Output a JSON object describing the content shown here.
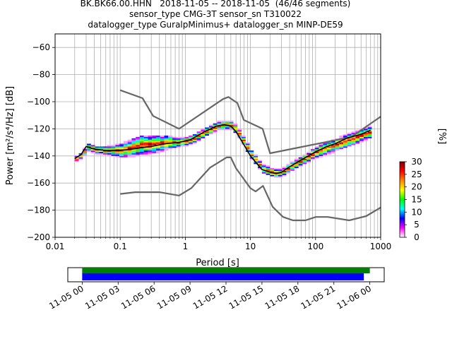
{
  "title": {
    "line1": "BK.BK66.00.HHN   2018-11-05 -- 2018-11-05  (46/46 segments)",
    "line2": "sensor_type CMG-3T sensor_sn T310022",
    "line3": "datalogger_type GuralpMinimus+ datalogger_sn MINP-DE59"
  },
  "chart_data": [
    {
      "type": "heatmap",
      "subtype": "probabilistic-power-spectral-density",
      "xlabel": "Period [s]",
      "ylabel": "Power [m²/s⁴/Hz] [dB]",
      "xscale": "log",
      "xlim": [
        0.01,
        1000
      ],
      "ylim": [
        -200,
        -50
      ],
      "xticks": [
        {
          "value": 0.01,
          "label": "0.01"
        },
        {
          "value": 0.1,
          "label": "0.1"
        },
        {
          "value": 1,
          "label": "1"
        },
        {
          "value": 10,
          "label": "10"
        },
        {
          "value": 100,
          "label": "100"
        },
        {
          "value": 1000,
          "label": "1000"
        }
      ],
      "yticks": [
        {
          "value": -60,
          "label": "−60"
        },
        {
          "value": -80,
          "label": "−80"
        },
        {
          "value": -100,
          "label": "−100"
        },
        {
          "value": -120,
          "label": "−120"
        },
        {
          "value": -140,
          "label": "−140"
        },
        {
          "value": -160,
          "label": "−160"
        },
        {
          "value": -180,
          "label": "−180"
        },
        {
          "value": -200,
          "label": "−200"
        }
      ],
      "grid": true,
      "colorbar": {
        "label": "[%]",
        "min": 0,
        "max": 30,
        "ticks": [
          0,
          5,
          10,
          15,
          20,
          25,
          30
        ],
        "colors": [
          "#ffffff",
          "#ff00ff",
          "#0000ff",
          "#00ffff",
          "#00ff00",
          "#ffff00",
          "#ff8800",
          "#ff0000",
          "#800000"
        ]
      },
      "series": [
        {
          "role": "new-high-noise-model",
          "color": "#666666",
          "x": [
            0.1,
            0.22,
            0.32,
            0.8,
            3.8,
            4.6,
            6.3,
            7.9,
            15.4,
            20,
            354.8,
            1000
          ],
          "y": [
            -91.5,
            -97.4,
            -110.5,
            -120,
            -98,
            -96.5,
            -101,
            -113.5,
            -120,
            -138,
            -126,
            -111
          ]
        },
        {
          "role": "new-low-noise-model",
          "color": "#666666",
          "x": [
            0.1,
            0.17,
            0.4,
            0.8,
            1.24,
            2.4,
            4.3,
            5,
            6,
            10,
            12,
            15.6,
            21.9,
            31.6,
            45,
            70,
            101,
            154,
            328,
            600,
            1000
          ],
          "y": [
            -168,
            -166.7,
            -166.7,
            -169.2,
            -163.7,
            -148.6,
            -141.1,
            -141.1,
            -149,
            -163.8,
            -166.2,
            -162.1,
            -177.5,
            -185,
            -187.5,
            -187.5,
            -185,
            -185,
            -187.5,
            -184.4,
            -178
          ]
        },
        {
          "role": "mode",
          "color": "#000000",
          "x": [
            0.02,
            0.025,
            0.03,
            0.04,
            0.06,
            0.1,
            0.15,
            0.2,
            0.3,
            0.5,
            0.8,
            1.2,
            2,
            3,
            4,
            5,
            6,
            8,
            10,
            15,
            20,
            25,
            30,
            40,
            60,
            100,
            150,
            200,
            300,
            500,
            700
          ],
          "y": [
            -142,
            -139,
            -133,
            -135,
            -136,
            -136,
            -135,
            -134,
            -133,
            -131,
            -130,
            -128,
            -122,
            -118,
            -117,
            -118,
            -122,
            -132,
            -140,
            -150,
            -152,
            -153,
            -152,
            -148,
            -143,
            -137,
            -133,
            -131,
            -127,
            -124,
            -121
          ]
        }
      ],
      "density_bands": [
        {
          "x": 0.02,
          "ylo": -144,
          "yhi": -140
        },
        {
          "x": 0.025,
          "ylo": -141,
          "yhi": -137
        },
        {
          "x": 0.03,
          "ylo": -136,
          "yhi": -131
        },
        {
          "x": 0.04,
          "ylo": -138,
          "yhi": -133
        },
        {
          "x": 0.06,
          "ylo": -139,
          "yhi": -133
        },
        {
          "x": 0.1,
          "ylo": -141,
          "yhi": -131
        },
        {
          "x": 0.15,
          "ylo": -140,
          "yhi": -127
        },
        {
          "x": 0.2,
          "ylo": -139,
          "yhi": -125
        },
        {
          "x": 0.3,
          "ylo": -138,
          "yhi": -125
        },
        {
          "x": 0.5,
          "ylo": -135,
          "yhi": -125
        },
        {
          "x": 0.8,
          "ylo": -133,
          "yhi": -127
        },
        {
          "x": 1.2,
          "ylo": -131,
          "yhi": -125
        },
        {
          "x": 2,
          "ylo": -125,
          "yhi": -119
        },
        {
          "x": 3,
          "ylo": -121,
          "yhi": -115
        },
        {
          "x": 4,
          "ylo": -120,
          "yhi": -114
        },
        {
          "x": 5,
          "ylo": -121,
          "yhi": -115
        },
        {
          "x": 6,
          "ylo": -125,
          "yhi": -119
        },
        {
          "x": 8,
          "ylo": -135,
          "yhi": -129
        },
        {
          "x": 10,
          "ylo": -143,
          "yhi": -137
        },
        {
          "x": 15,
          "ylo": -153,
          "yhi": -147
        },
        {
          "x": 20,
          "ylo": -155,
          "yhi": -149
        },
        {
          "x": 25,
          "ylo": -156,
          "yhi": -150
        },
        {
          "x": 30,
          "ylo": -155,
          "yhi": -149
        },
        {
          "x": 40,
          "ylo": -151,
          "yhi": -145
        },
        {
          "x": 60,
          "ylo": -146,
          "yhi": -140
        },
        {
          "x": 100,
          "ylo": -141,
          "yhi": -133
        },
        {
          "x": 150,
          "ylo": -138,
          "yhi": -129
        },
        {
          "x": 200,
          "ylo": -136,
          "yhi": -127
        },
        {
          "x": 300,
          "ylo": -133,
          "yhi": -124
        },
        {
          "x": 500,
          "ylo": -129,
          "yhi": -120
        },
        {
          "x": 700,
          "ylo": -126,
          "yhi": -118
        }
      ]
    },
    {
      "type": "bar",
      "subtype": "data-coverage-timeline",
      "xticks": [
        "11-05 00",
        "11-05 03",
        "11-05 06",
        "11-05 09",
        "11-05 12",
        "11-05 15",
        "11-05 18",
        "11-05 21",
        "11-06 00"
      ],
      "xlim_hours": [
        -1.2,
        25.2
      ],
      "series": [
        {
          "role": "data-available",
          "color": "#008000",
          "start_hour": 0,
          "end_hour": 24.0
        },
        {
          "role": "psd-segments",
          "color": "#0000ff",
          "start_hour": 0,
          "end_hour": 23.5
        }
      ]
    }
  ]
}
